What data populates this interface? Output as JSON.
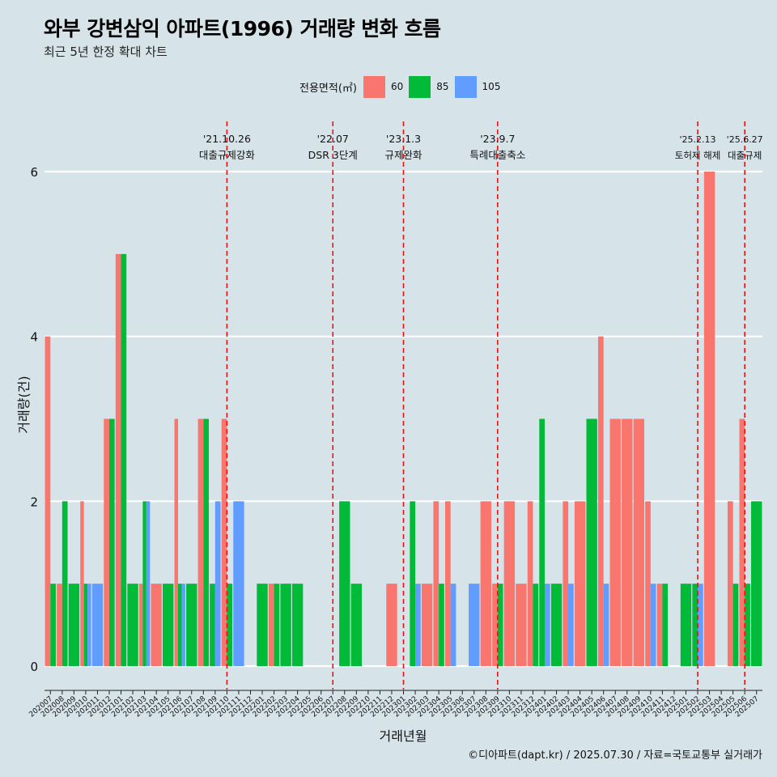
{
  "title": "와부 강변삼익 아파트(1996) 거래량 변화 흐름",
  "subtitle": "최근 5년 한정 확대 차트",
  "legend": {
    "title": "전용면적(㎡)",
    "items": [
      {
        "label": "60",
        "color": "#f8766d"
      },
      {
        "label": "85",
        "color": "#00ba38"
      },
      {
        "label": "105",
        "color": "#619cff"
      }
    ]
  },
  "caption": "©디아파트(dapt.kr) / 2025.07.30 / 자료=국토교통부 실거래가",
  "chart_data": {
    "type": "bar",
    "stacking": "dodge",
    "title": "와부 강변삼익 아파트(1996) 거래량 변화 흐름",
    "subtitle": "최근 5년 한정 확대 차트",
    "xlabel": "거래년월",
    "ylabel": "거래량(건)",
    "ylim": [
      0,
      6
    ],
    "yticks": [
      0,
      2,
      4,
      6
    ],
    "grid": "horizontal",
    "legend_position": "top",
    "categories": [
      "202007",
      "202008",
      "202009",
      "202010",
      "202011",
      "202012",
      "202101",
      "202102",
      "202103",
      "202104",
      "202105",
      "202106",
      "202107",
      "202108",
      "202109",
      "202110",
      "202111",
      "202112",
      "202201",
      "202202",
      "202203",
      "202204",
      "202205",
      "202206",
      "202207",
      "202208",
      "202209",
      "202210",
      "202211",
      "202212",
      "202301",
      "202302",
      "202303",
      "202304",
      "202305",
      "202306",
      "202307",
      "202308",
      "202309",
      "202310",
      "202311",
      "202312",
      "202401",
      "202402",
      "202403",
      "202404",
      "202405",
      "202406",
      "202407",
      "202408",
      "202409",
      "202410",
      "202411",
      "202412",
      "202501",
      "202502",
      "202503",
      "202504",
      "202505",
      "202506",
      "202507"
    ],
    "series": [
      {
        "name": "60",
        "color": "#f8766d",
        "values": [
          4,
          1,
          0,
          2,
          0,
          3,
          5,
          0,
          1,
          1,
          0,
          3,
          0,
          3,
          0,
          3,
          0,
          0,
          0,
          1,
          0,
          0,
          0,
          0,
          0,
          0,
          0,
          0,
          0,
          1,
          0,
          0,
          1,
          2,
          2,
          0,
          0,
          2,
          1,
          2,
          1,
          2,
          0,
          0,
          2,
          2,
          0,
          4,
          3,
          3,
          3,
          2,
          1,
          0,
          0,
          0,
          6,
          0,
          2,
          3,
          0
        ]
      },
      {
        "name": "85",
        "color": "#00ba38",
        "values": [
          1,
          2,
          1,
          1,
          0,
          3,
          5,
          1,
          2,
          0,
          1,
          1,
          1,
          3,
          1,
          1,
          0,
          0,
          1,
          1,
          1,
          1,
          0,
          0,
          0,
          2,
          1,
          0,
          0,
          0,
          0,
          2,
          0,
          1,
          0,
          0,
          0,
          0,
          1,
          0,
          0,
          1,
          3,
          1,
          0,
          0,
          3,
          0,
          0,
          0,
          0,
          0,
          1,
          0,
          1,
          1,
          0,
          0,
          1,
          1,
          2
        ]
      },
      {
        "name": "105",
        "color": "#619cff",
        "values": [
          0,
          0,
          0,
          1,
          1,
          0,
          0,
          0,
          2,
          0,
          0,
          1,
          0,
          0,
          2,
          0,
          2,
          0,
          0,
          0,
          0,
          0,
          0,
          0,
          0,
          0,
          0,
          0,
          0,
          0,
          0,
          1,
          0,
          0,
          1,
          0,
          1,
          0,
          0,
          0,
          0,
          0,
          1,
          0,
          1,
          0,
          0,
          1,
          0,
          0,
          0,
          1,
          0,
          0,
          0,
          1,
          0,
          0,
          0,
          0,
          0
        ]
      }
    ],
    "annotations": [
      {
        "x": "202110",
        "date": "'21.10.26",
        "label": "대출규제강화"
      },
      {
        "x": "202207",
        "date": "'22.07",
        "label": "DSR 3단계"
      },
      {
        "x": "202301",
        "date": "'23.1.3",
        "label": "규제완화"
      },
      {
        "x": "202309",
        "date": "'23.9.7",
        "label": "특례대출축소"
      },
      {
        "x": "202502",
        "date": "'25.2.13",
        "label": "토허제 해제"
      },
      {
        "x": "202506",
        "date": "'25.6.27",
        "label": "대출규제"
      }
    ]
  }
}
